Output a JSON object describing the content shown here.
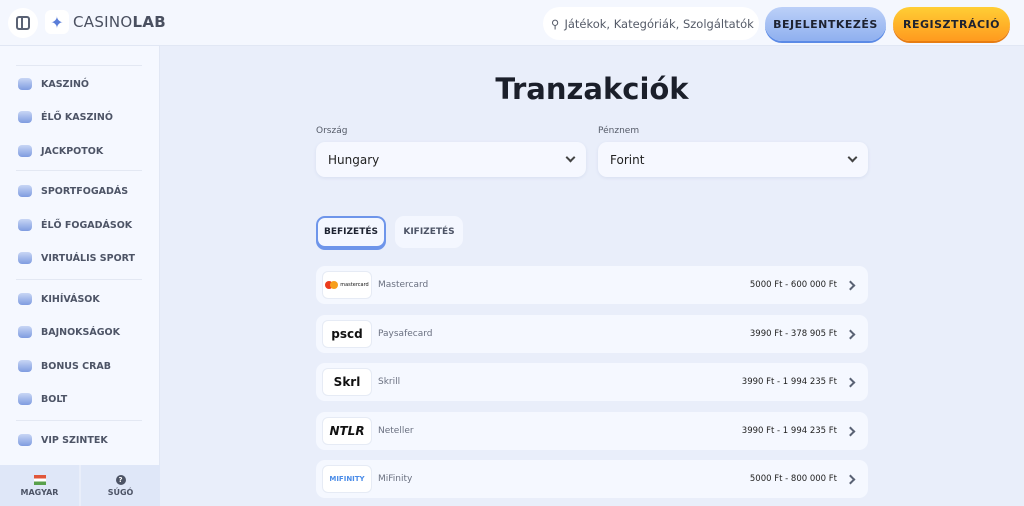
{
  "header": {
    "logo": "CASINOLAB",
    "search_placeholder": "Játékok, Kategóriák, Szolgáltatók",
    "login": "BEJELENTKEZÉS",
    "register": "REGISZTRÁCIÓ"
  },
  "sidebar": {
    "items": [
      {
        "label": "KASZINÓ"
      },
      {
        "label": "ÉLŐ KASZINÓ"
      },
      {
        "label": "JACKPOTOK"
      },
      {
        "label": "SPORTFOGADÁS"
      },
      {
        "label": "ÉLŐ FOGADÁSOK"
      },
      {
        "label": "VIRTUÁLIS SPORT"
      },
      {
        "label": "KIHÍVÁSOK"
      },
      {
        "label": "BAJNOKSÁGOK"
      },
      {
        "label": "BONUS CRAB"
      },
      {
        "label": "BOLT"
      },
      {
        "label": "VIP SZINTEK"
      }
    ],
    "language": "MAGYAR",
    "help": "SÚGÓ"
  },
  "main": {
    "title": "Tranzakciók",
    "country_label": "Ország",
    "country": "Hungary",
    "currency_label": "Pénznem",
    "currency": "Forint",
    "tabs": [
      {
        "label": "BEFIZETÉS",
        "active": true
      },
      {
        "label": "KIFIZETÉS",
        "active": false
      }
    ],
    "methods": [
      {
        "logo": "mastercard",
        "name": "Mastercard",
        "range": "5000 Ft - 600 000 Ft"
      },
      {
        "logo": "pscd",
        "name": "Paysafecard",
        "range": "3990 Ft - 378 905 Ft"
      },
      {
        "logo": "Skrl",
        "name": "Skrill",
        "range": "3990 Ft - 1 994 235 Ft"
      },
      {
        "logo": "NTLR",
        "name": "Neteller",
        "range": "3990 Ft - 1 994 235 Ft"
      },
      {
        "logo": "MIFINITY",
        "name": "MiFinity",
        "range": "5000 Ft - 800 000 Ft"
      }
    ]
  }
}
